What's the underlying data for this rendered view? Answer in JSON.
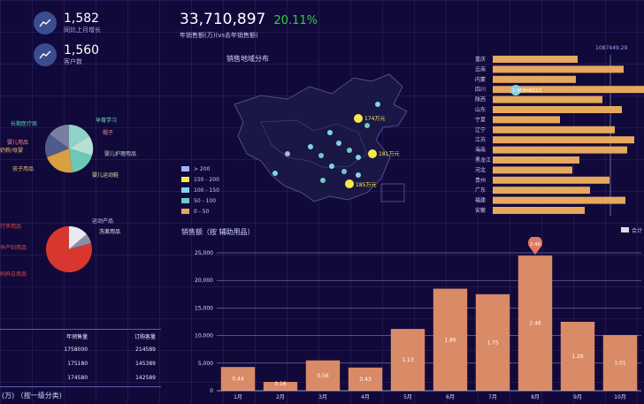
{
  "kpi": {
    "growth_value": "1,582",
    "growth_label": "同比上月增长",
    "customers_value": "1,560",
    "customers_label": "客户数"
  },
  "headline": {
    "sales_value": "33,710,897",
    "growth_pct": "20.11%",
    "subtitle": "年销售额(万)(vs去年销售额)"
  },
  "map_panel": {
    "title": "销售地域分布",
    "legend": [
      {
        "label": "> 200",
        "color": "#9fb3ff"
      },
      {
        "label": "150 - 200",
        "color": "#f6e84a"
      },
      {
        "label": "100 - 150",
        "color": "#7dd3f2"
      },
      {
        "label": "50 - 100",
        "color": "#73c8c0"
      },
      {
        "label": "0 - 50",
        "color": "#e6a85c"
      }
    ],
    "bubbles": [
      {
        "label": "174万元",
        "color": "#f6e84a"
      },
      {
        "label": "181万元",
        "color": "#f6e84a"
      },
      {
        "label": "185万元",
        "color": "#f6e84a"
      }
    ]
  },
  "pie_top": {
    "labels_left": [
      "长期医疗病",
      "婴儿用品",
      "奶粉/母婴",
      "孩子用品"
    ],
    "labels_right": [
      "孕育学习",
      "帽子",
      "婴儿护理用品",
      "婴儿运动鞋"
    ],
    "colors": [
      "#4f5b8a",
      "#8fd3c8",
      "#b8e0d2",
      "#d9a040",
      "#6cc9b8",
      "#e86b6b"
    ]
  },
  "pie_bottom": {
    "labels_left": [
      "行李用品",
      "孕产妇用品",
      "妈妈日用品"
    ],
    "labels_right": [
      "运动产品",
      "洗漱用品"
    ],
    "colors": [
      "#d7372f",
      "#e9e9f0",
      "#8a8fa8"
    ]
  },
  "table": {
    "headers": [
      "年销售量",
      "订购客量"
    ],
    "rows": [
      [
        "1758000",
        "214589"
      ],
      [
        "175180",
        "145389"
      ],
      [
        "174580",
        "142589"
      ]
    ],
    "footer": "(万) （按一级分类)"
  },
  "hbar": {
    "top_value": "1087449.29",
    "provinces": [
      "重庆",
      "云南",
      "内蒙",
      "四川",
      "陕西",
      "山东",
      "宁夏",
      "辽宁",
      "江苏",
      "海南",
      "黑龙江",
      "河北",
      "贵州",
      "广东",
      "福建",
      "安徽"
    ],
    "bubble_value": "1.95846523",
    "legend_label": "合计"
  },
  "bar_chart": {
    "title": "销售额（按 辅助用品）",
    "peak_label": "2.46"
  },
  "chart_data": {
    "type": "bar",
    "title": "销售额（按 辅助用品）",
    "categories": [
      "1月",
      "2月",
      "3月",
      "4月",
      "5月",
      "6月",
      "7月",
      "8月",
      "9月",
      "10月"
    ],
    "values": [
      4300,
      1600,
      5500,
      4200,
      11200,
      18500,
      17500,
      24500,
      12500,
      10100
    ],
    "data_labels": [
      "0.44",
      "0.16",
      "0.56",
      "0.43",
      "1.13",
      "1.86",
      "1.75",
      "2.46",
      "1.26",
      "1.01"
    ],
    "ylim": [
      0,
      25000
    ],
    "yticks": [
      "0",
      "5,000",
      "10,000",
      "15,000",
      "20,000",
      "25,000"
    ],
    "grid": true,
    "bar_color": "#d98a66"
  }
}
